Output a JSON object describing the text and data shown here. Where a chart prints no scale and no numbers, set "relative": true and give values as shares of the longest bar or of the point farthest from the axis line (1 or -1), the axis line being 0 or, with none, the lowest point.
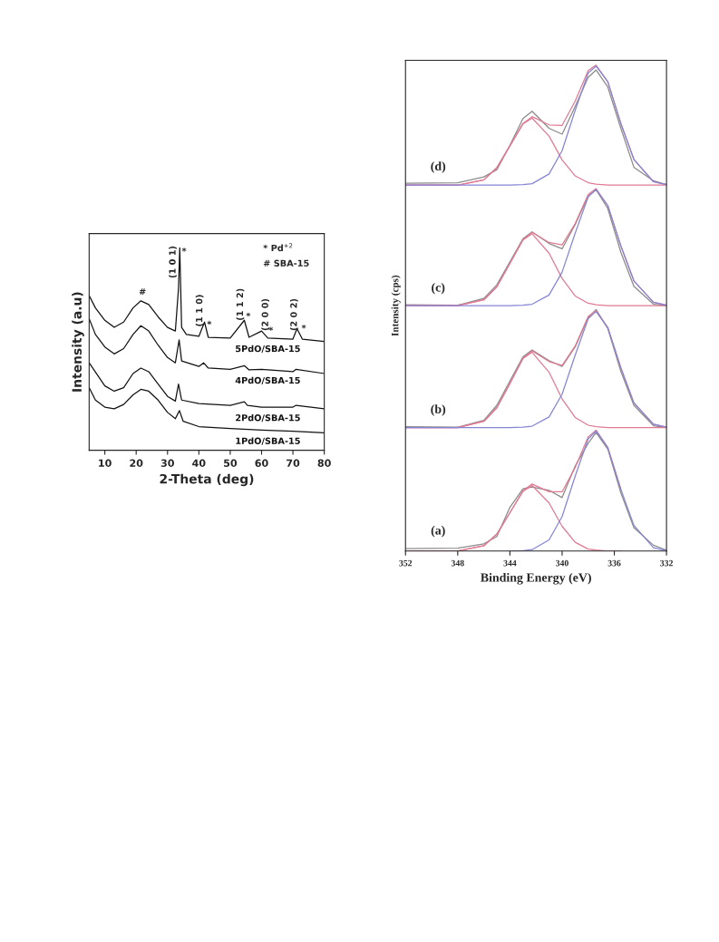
{
  "chart_data": [
    {
      "type": "line",
      "relative": true,
      "xlabel": "2-Theta (deg)",
      "ylabel": "Intensity (a.u)",
      "xlim": [
        5,
        80
      ],
      "xticks": [
        10,
        20,
        30,
        40,
        50,
        60,
        70,
        80
      ],
      "tick_labels": "x",
      "series": [
        {
          "name": "5PdO/SBA-15",
          "color": "#111111",
          "x": [
            5,
            7,
            10,
            13,
            16,
            19,
            21.5,
            24,
            27,
            30,
            32.5,
            33.5,
            33.9,
            34.5,
            36,
            40,
            41.8,
            43,
            50,
            54.5,
            56,
            60,
            62,
            70,
            71.3,
            73,
            80
          ],
          "values": [
            0.764,
            0.703,
            0.642,
            0.607,
            0.633,
            0.703,
            0.738,
            0.72,
            0.659,
            0.607,
            0.589,
            0.799,
            1,
            0.607,
            0.572,
            0.563,
            0.633,
            0.558,
            0.554,
            0.642,
            0.558,
            0.589,
            0.554,
            0.549,
            0.601,
            0.549,
            0.537
          ]
        },
        {
          "name": "4PdO/SBA-15",
          "color": "#111111",
          "x": [
            5,
            7,
            10,
            13,
            16,
            19,
            21.5,
            24,
            27,
            30,
            32.5,
            33.7,
            34.5,
            40,
            41.5,
            43,
            50,
            54.5,
            56,
            60,
            70,
            71,
            80
          ],
          "values": [
            0.65,
            0.572,
            0.51,
            0.476,
            0.502,
            0.572,
            0.615,
            0.589,
            0.519,
            0.458,
            0.432,
            0.545,
            0.441,
            0.414,
            0.432,
            0.406,
            0.4,
            0.418,
            0.397,
            0.4,
            0.388,
            0.4,
            0.379
          ]
        },
        {
          "name": "2PdO/SBA-15",
          "color": "#111111",
          "x": [
            5,
            10,
            13,
            16,
            19,
            21.5,
            24,
            27,
            30,
            32.5,
            33.5,
            34.5,
            40,
            50,
            54.5,
            55.5,
            60,
            70,
            71,
            80
          ],
          "values": [
            0.432,
            0.318,
            0.292,
            0.309,
            0.379,
            0.406,
            0.388,
            0.327,
            0.266,
            0.243,
            0.327,
            0.248,
            0.231,
            0.222,
            0.24,
            0.222,
            0.213,
            0.213,
            0.222,
            0.205
          ]
        },
        {
          "name": "1PdO/SBA-15",
          "color": "#111111",
          "x": [
            5,
            7,
            10,
            13,
            16,
            19,
            21.5,
            24,
            27,
            30,
            32.5,
            33.8,
            35,
            40,
            50,
            60,
            70,
            80
          ],
          "values": [
            0.309,
            0.248,
            0.213,
            0.205,
            0.226,
            0.274,
            0.301,
            0.292,
            0.248,
            0.187,
            0.156,
            0.196,
            0.143,
            0.117,
            0.108,
            0.1,
            0.094,
            0.086
          ]
        }
      ],
      "annotations": [
        "(1 0 1)",
        "*",
        "#",
        "(1 1 0)",
        "*",
        "(1 1 2)",
        "*",
        "(2 0 0)",
        "*",
        "(2 0 2)",
        "*",
        "* Pd$^{+2}$",
        "# SBA-15"
      ]
    },
    {
      "type": "line",
      "relative": true,
      "xlabel": "Binding Energy (eV)",
      "ylabel": "Intensity (cps)",
      "xlim": [
        352,
        332
      ],
      "xticks": [
        352,
        348,
        344,
        340,
        336,
        332
      ],
      "tick_labels": "x",
      "x": [
        352,
        348,
        346,
        345,
        344,
        343,
        342.3,
        341,
        340,
        339,
        338,
        337.4,
        336.5,
        335.5,
        334.5,
        333,
        332
      ],
      "series": [
        {
          "color": "#8a8a8a",
          "values": [
            0.757,
            0.758,
            0.77,
            0.785,
            0.835,
            0.89,
            0.905,
            0.87,
            0.858,
            0.915,
            0.975,
            0.99,
            0.955,
            0.87,
            0.79,
            0.762,
            0.754
          ]
        },
        {
          "color": "#e07a93",
          "values": [
            0.753,
            0.753,
            0.764,
            0.789,
            0.834,
            0.88,
            0.894,
            0.877,
            0.876,
            0.926,
            0.989,
            1.0,
            0.966,
            0.88,
            0.806,
            0.76,
            0.754
          ]
        },
        {
          "color": "#e07a93",
          "values": [
            0.753,
            0.753,
            0.764,
            0.789,
            0.834,
            0.879,
            0.891,
            0.854,
            0.805,
            0.772,
            0.758,
            0.755,
            0.753,
            0.753,
            0.753,
            0.753,
            0.753
          ]
        },
        {
          "color": "#8585d6",
          "values": [
            0.753,
            0.753,
            0.753,
            0.753,
            0.753,
            0.754,
            0.756,
            0.776,
            0.824,
            0.907,
            0.984,
            0.998,
            0.966,
            0.88,
            0.806,
            0.76,
            0.754
          ]
        },
        {
          "color": "#8a8a8a",
          "values": [
            0.507,
            0.506,
            0.52,
            0.548,
            0.595,
            0.643,
            0.657,
            0.633,
            0.622,
            0.672,
            0.73,
            0.744,
            0.705,
            0.615,
            0.545,
            0.508,
            0.505
          ]
        },
        {
          "color": "#e07a93",
          "values": [
            0.505,
            0.505,
            0.517,
            0.544,
            0.592,
            0.641,
            0.656,
            0.635,
            0.63,
            0.674,
            0.734,
            0.746,
            0.711,
            0.628,
            0.556,
            0.512,
            0.506
          ]
        },
        {
          "color": "#e07a93",
          "values": [
            0.505,
            0.505,
            0.517,
            0.544,
            0.592,
            0.64,
            0.653,
            0.613,
            0.561,
            0.525,
            0.51,
            0.507,
            0.505,
            0.505,
            0.505,
            0.505,
            0.505
          ]
        },
        {
          "color": "#8585d6",
          "values": [
            0.505,
            0.505,
            0.505,
            0.505,
            0.505,
            0.506,
            0.508,
            0.527,
            0.574,
            0.654,
            0.729,
            0.744,
            0.711,
            0.628,
            0.556,
            0.512,
            0.506
          ]
        },
        {
          "color": "#8a8a8a",
          "values": [
            0.256,
            0.255,
            0.269,
            0.3,
            0.35,
            0.4,
            0.414,
            0.392,
            0.38,
            0.42,
            0.48,
            0.497,
            0.458,
            0.37,
            0.3,
            0.258,
            0.254
          ]
        },
        {
          "color": "#e07a93",
          "values": [
            0.254,
            0.254,
            0.267,
            0.295,
            0.345,
            0.397,
            0.412,
            0.39,
            0.382,
            0.422,
            0.483,
            0.495,
            0.46,
            0.377,
            0.305,
            0.261,
            0.255
          ]
        },
        {
          "color": "#e07a93",
          "values": [
            0.254,
            0.254,
            0.267,
            0.295,
            0.345,
            0.396,
            0.409,
            0.368,
            0.313,
            0.275,
            0.259,
            0.256,
            0.254,
            0.254,
            0.254,
            0.254,
            0.254
          ]
        },
        {
          "color": "#8585d6",
          "values": [
            0.254,
            0.254,
            0.254,
            0.254,
            0.254,
            0.255,
            0.257,
            0.276,
            0.323,
            0.403,
            0.478,
            0.493,
            0.46,
            0.377,
            0.305,
            0.261,
            0.255
          ]
        },
        {
          "color": "#8a8a8a",
          "values": [
            0.005,
            0.006,
            0.015,
            0.03,
            0.09,
            0.128,
            0.132,
            0.125,
            0.11,
            0.175,
            0.222,
            0.244,
            0.21,
            0.12,
            0.048,
            0.012,
            0.002
          ]
        },
        {
          "color": "#e07a93",
          "values": [
            0,
            0,
            0.011,
            0.035,
            0.079,
            0.124,
            0.138,
            0.122,
            0.122,
            0.172,
            0.235,
            0.249,
            0.213,
            0.127,
            null,
            null,
            null
          ]
        },
        {
          "color": "#e07a93",
          "values": [
            0,
            0,
            0.011,
            0.035,
            0.079,
            0.123,
            0.135,
            0.099,
            0.051,
            0.018,
            0.004,
            0.002,
            0,
            0,
            null,
            null,
            null
          ]
        },
        {
          "color": "#8585d6",
          "values": [
            null,
            null,
            null,
            null,
            0,
            0.001,
            0.003,
            0.023,
            0.071,
            0.154,
            0.231,
            0.247,
            0.213,
            0.127,
            0.053,
            0.007,
            0.001
          ]
        }
      ],
      "annotations": [
        "(d)",
        "(c)",
        "(b)",
        "(a)"
      ]
    }
  ]
}
